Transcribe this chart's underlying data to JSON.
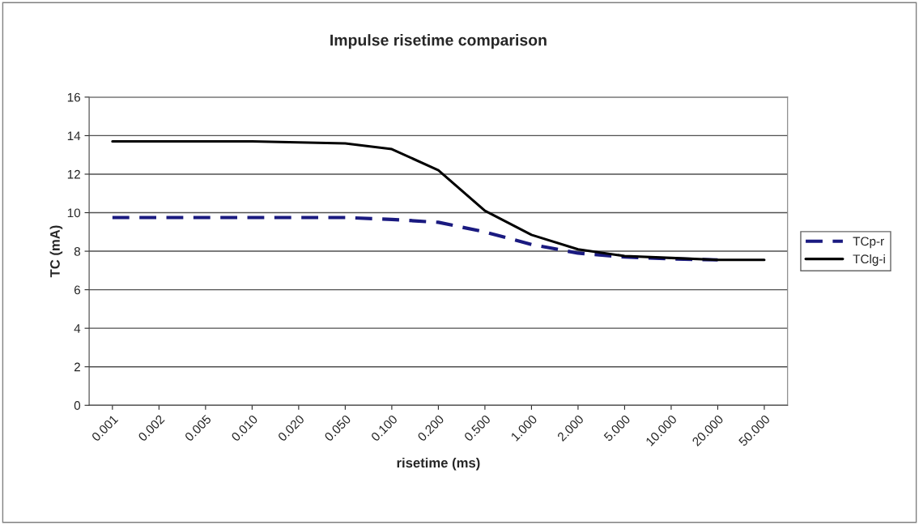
{
  "chart_data": {
    "type": "line",
    "title": "Impulse risetime comparison",
    "xlabel": "risetime (ms)",
    "ylabel": "TC (mA)",
    "categories": [
      "0.001",
      "0.002",
      "0.005",
      "0.010",
      "0.020",
      "0.050",
      "0.100",
      "0.200",
      "0.500",
      "1.000",
      "2.000",
      "5.000",
      "10.000",
      "20.000",
      "50.000"
    ],
    "series": [
      {
        "name": "TCp-r",
        "color": "#1a1a80",
        "line_style": "dashed",
        "values": [
          9.75,
          9.75,
          9.75,
          9.75,
          9.75,
          9.75,
          9.65,
          9.5,
          9.0,
          8.35,
          7.9,
          7.7,
          7.6,
          7.55,
          null
        ]
      },
      {
        "name": "TClg-i",
        "color": "#000000",
        "line_style": "solid",
        "values": [
          13.7,
          13.7,
          13.7,
          13.7,
          13.65,
          13.6,
          13.3,
          12.2,
          10.1,
          8.85,
          8.1,
          7.75,
          7.65,
          7.55,
          7.55
        ]
      }
    ],
    "ylim": [
      0,
      16
    ],
    "yticks": [
      0,
      2,
      4,
      6,
      8,
      10,
      12,
      14,
      16
    ],
    "grid": "y",
    "legend": "right",
    "marker": "none"
  }
}
